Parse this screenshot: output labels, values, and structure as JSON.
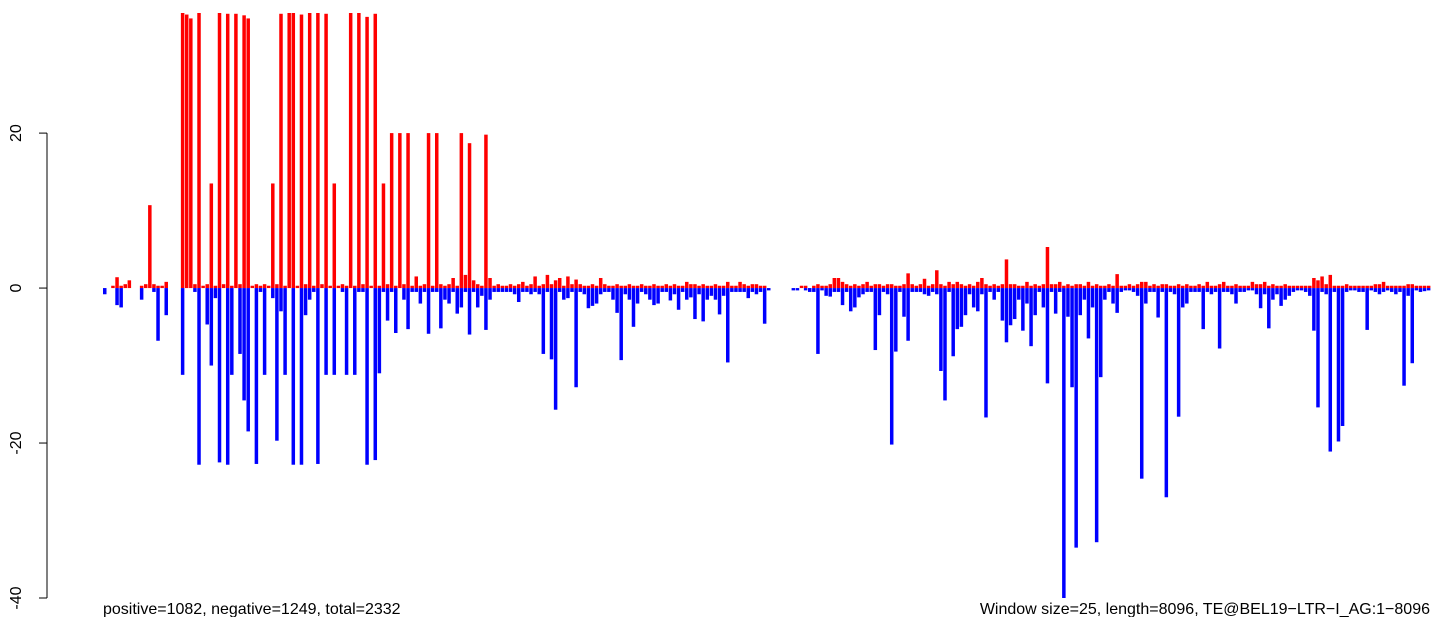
{
  "chart_data": {
    "type": "bar",
    "annotations": [
      "positive=1082, negative=1249, total=2332",
      "Window size=25, length=8096, TE@BEL19−LTR−I_AG:1−8096"
    ],
    "ylim": [
      -40,
      35.5
    ],
    "yticks": [
      -40,
      -20,
      0,
      20
    ],
    "xlim": [
      0,
      324
    ],
    "series": [
      {
        "color": "#ff0000",
        "values": [
          0,
          0,
          0.3,
          1.4,
          0.3,
          0.5,
          1,
          0,
          0,
          0.3,
          0.5,
          10.7,
          0.5,
          0.3,
          0.3,
          0.8,
          0,
          0,
          0,
          35.5,
          35.3,
          34.8,
          0.5,
          35.5,
          0.3,
          0.5,
          13.5,
          0.3,
          35.5,
          0.5,
          35.4,
          0.3,
          35.4,
          0.5,
          35.2,
          34.8,
          0.3,
          0.5,
          0.3,
          0.5,
          0.3,
          13.5,
          0.5,
          35.4,
          0.3,
          35.5,
          35.5,
          0.3,
          35.3,
          0.5,
          35.5,
          0.3,
          35.5,
          0.5,
          35.4,
          0.3,
          13.5,
          0.3,
          0.5,
          0.3,
          35.5,
          0.3,
          35.5,
          0.5,
          35,
          0.3,
          35.4,
          0.3,
          13.5,
          0.5,
          20,
          0.3,
          20,
          0.5,
          20,
          0.3,
          1.5,
          0.3,
          0.5,
          20,
          0.3,
          20,
          0.5,
          0.3,
          0.5,
          1.3,
          0.3,
          20,
          1.7,
          18.7,
          1,
          0.5,
          0.3,
          19.8,
          1.3,
          0.3,
          0.5,
          0.3,
          0.3,
          0.5,
          0.3,
          0.5,
          0.8,
          0.3,
          0.5,
          1.5,
          0.3,
          0.5,
          1.7,
          0.5,
          1,
          1.3,
          0.3,
          1.5,
          0.5,
          1.1,
          0.5,
          0.3,
          0.3,
          0.5,
          0.3,
          1.3,
          0.5,
          0.3,
          0.3,
          0.5,
          0.3,
          0.3,
          0.5,
          0.3,
          0.3,
          0.5,
          0.3,
          0.3,
          0.5,
          0.3,
          0.3,
          0.5,
          0.3,
          0.5,
          0.3,
          0.3,
          0.8,
          0.5,
          0.5,
          0.3,
          0.5,
          0.3,
          0.3,
          0.5,
          0.3,
          0.3,
          0.8,
          0.3,
          0.3,
          0.8,
          0.5,
          0.3,
          0.5,
          0.5,
          0.3,
          0.3,
          0,
          0,
          0,
          0,
          0,
          0,
          0,
          0,
          0.3,
          0.3,
          0,
          0.3,
          0.5,
          0.3,
          0.3,
          0.5,
          1.3,
          1.3,
          0.8,
          0.5,
          0.3,
          0.5,
          0.3,
          0.5,
          0.8,
          0.3,
          0.5,
          0.5,
          0.3,
          0.5,
          0.5,
          0.3,
          0.3,
          0.5,
          1.9,
          0.5,
          0.3,
          0.5,
          1.2,
          0.3,
          0.5,
          2.3,
          0.5,
          0.3,
          0.8,
          0.5,
          0.8,
          0.5,
          0.3,
          0.5,
          0.3,
          0.8,
          1.3,
          0.5,
          0.3,
          0.5,
          0.3,
          0.5,
          3.7,
          0.5,
          0.5,
          0.3,
          0.3,
          0.8,
          0.3,
          0.5,
          0.3,
          0.5,
          5.3,
          0.5,
          0.5,
          0.8,
          0.3,
          0.5,
          0.3,
          0.5,
          0.5,
          0.3,
          0.8,
          0.3,
          0.5,
          0.3,
          0.3,
          0.5,
          0.3,
          1.8,
          0.3,
          0.3,
          0.5,
          0.3,
          0.5,
          0.8,
          0.8,
          0.3,
          0.5,
          0.3,
          0.5,
          0.5,
          0.3,
          0.3,
          0.5,
          0.3,
          0.5,
          0.3,
          0.3,
          0.5,
          0.3,
          0.8,
          0.3,
          0.3,
          0.5,
          0.8,
          0.3,
          0.3,
          0.5,
          0.3,
          0.3,
          0.3,
          0.8,
          0.5,
          0.5,
          0.8,
          0.3,
          0.5,
          0.3,
          0.3,
          0.5,
          0.3,
          0.3,
          0.3,
          0.3,
          0.3,
          0.3,
          1.3,
          1,
          1.5,
          0.5,
          1.7,
          0.3,
          0.3,
          0.3,
          0.5,
          0.3,
          0.3,
          0.3,
          0.3,
          0.3,
          0.3,
          0.5,
          0.5,
          0.8,
          0.3,
          0.3,
          0.3,
          0.3,
          0.3,
          0.5,
          0.5,
          0.3,
          0.3,
          0.3,
          0.3
        ]
      },
      {
        "color": "#0000ff",
        "values": [
          -0.8,
          0,
          0,
          -2.2,
          -2.5,
          0,
          0,
          0,
          0,
          -1.5,
          0,
          0,
          -0.5,
          -6.8,
          0,
          -3.5,
          0,
          0,
          0,
          -11.2,
          0,
          0,
          -0.5,
          -22.8,
          0,
          -4.7,
          -10,
          -1.3,
          -22.5,
          0,
          -22.8,
          -11.2,
          0,
          -8.5,
          -14.5,
          -18.5,
          0,
          -22.7,
          -0.5,
          -11.2,
          0,
          -1.3,
          -19.7,
          -3,
          -11.2,
          0,
          -22.8,
          0,
          -22.8,
          -3.5,
          -1.5,
          -0.5,
          -22.7,
          0,
          -11.2,
          0,
          -11.2,
          0,
          -0.5,
          -11.2,
          0,
          -11.2,
          -0.5,
          -0.5,
          -22.8,
          0,
          -22.2,
          -11,
          -0.5,
          -4.2,
          -0.5,
          -5.8,
          0,
          -1.5,
          -5.3,
          -0.5,
          -0.5,
          -2,
          -0.5,
          -5.9,
          -0.5,
          -0.5,
          -5.2,
          -1.5,
          -2,
          -0.5,
          -3.3,
          -2.5,
          -0.5,
          -6,
          -0.5,
          -2.5,
          -1,
          -5.4,
          -1.5,
          -0.5,
          -0.5,
          -0.5,
          -0.5,
          -0.5,
          -0.8,
          -1.8,
          -0.5,
          -0.5,
          -0.8,
          -0.5,
          -0.8,
          -8.5,
          -0.5,
          -9.2,
          -15.7,
          -0.5,
          -1.5,
          -1.3,
          -0.5,
          -12.8,
          -0.5,
          -0.8,
          -2.6,
          -2.3,
          -2,
          -0.8,
          -0.5,
          -0.5,
          -1.5,
          -3.2,
          -9.3,
          -0.8,
          -1.5,
          -5,
          -2,
          -0.5,
          -0.8,
          -1.5,
          -2.2,
          -2,
          -0.5,
          -0.5,
          -1.6,
          -0.8,
          -2.8,
          -0.5,
          -1.5,
          -1.2,
          -4,
          -0.8,
          -4.3,
          -1.5,
          -1,
          -1.5,
          -3.4,
          -1,
          -9.6,
          -0.5,
          -0.5,
          -0.5,
          -0.5,
          -1.3,
          -0.5,
          -0.8,
          -0.5,
          -4.6,
          -0.3,
          0,
          0,
          0,
          0,
          0,
          -0.3,
          -0.3,
          0,
          -0.3,
          -0.5,
          -0.5,
          -8.5,
          -0.3,
          -1,
          -1.1,
          -0.5,
          -0.5,
          -2.2,
          -0.5,
          -3,
          -2.5,
          -1.2,
          -0.8,
          -0.5,
          -0.5,
          -8,
          -3.5,
          -0.5,
          -0.8,
          -20.2,
          -8.2,
          -0.5,
          -3.7,
          -6.8,
          -0.5,
          -0.5,
          -0.5,
          -0.8,
          -1,
          -0.5,
          -0.8,
          -10.7,
          -14.5,
          -0.5,
          -8.8,
          -5.3,
          -5,
          -3.5,
          -0.8,
          -2.5,
          -3,
          -0.8,
          -16.7,
          -0.5,
          -1.5,
          -0.5,
          -4.2,
          -7,
          -4.8,
          -4,
          -1.5,
          -5.5,
          -2,
          -7.5,
          -3.5,
          -0.5,
          -2.5,
          -12.3,
          -0.5,
          -3.3,
          -0.5,
          -40,
          -3.7,
          -12.8,
          -33.5,
          -3.5,
          -1.5,
          -6.5,
          -2.5,
          -32.8,
          -11.5,
          -1.5,
          -0.5,
          -2,
          -3.2,
          -0.5,
          -0.3,
          -0.3,
          -0.5,
          -1,
          -24.6,
          -2,
          -0.5,
          -0.5,
          -3.8,
          -0.5,
          -27,
          -0.5,
          -0.8,
          -16.6,
          -2.5,
          -2,
          -0.5,
          -0.5,
          -0.5,
          -5.3,
          -0.5,
          -0.8,
          -0.5,
          -7.8,
          -0.5,
          -0.5,
          -0.8,
          -2,
          -0.5,
          -0.5,
          -0.3,
          -0.3,
          -0.8,
          -2.6,
          -0.8,
          -5.2,
          -1.5,
          -0.8,
          -2.3,
          -1.5,
          -1,
          -0.5,
          -0.3,
          -0.3,
          -0.5,
          -1,
          -5.5,
          -15.4,
          -0.5,
          -0.8,
          -21.1,
          -0.5,
          -19.8,
          -17.8,
          -0.5,
          -0.3,
          -0.3,
          -0.5,
          -0.5,
          -5.4,
          -0.3,
          -0.5,
          -0.8,
          -0.5,
          -0.3,
          -0.5,
          -0.8,
          -0.5,
          -12.6,
          -1,
          -9.7,
          -0.3,
          -0.5,
          -0.4,
          -0.3
        ]
      }
    ]
  }
}
